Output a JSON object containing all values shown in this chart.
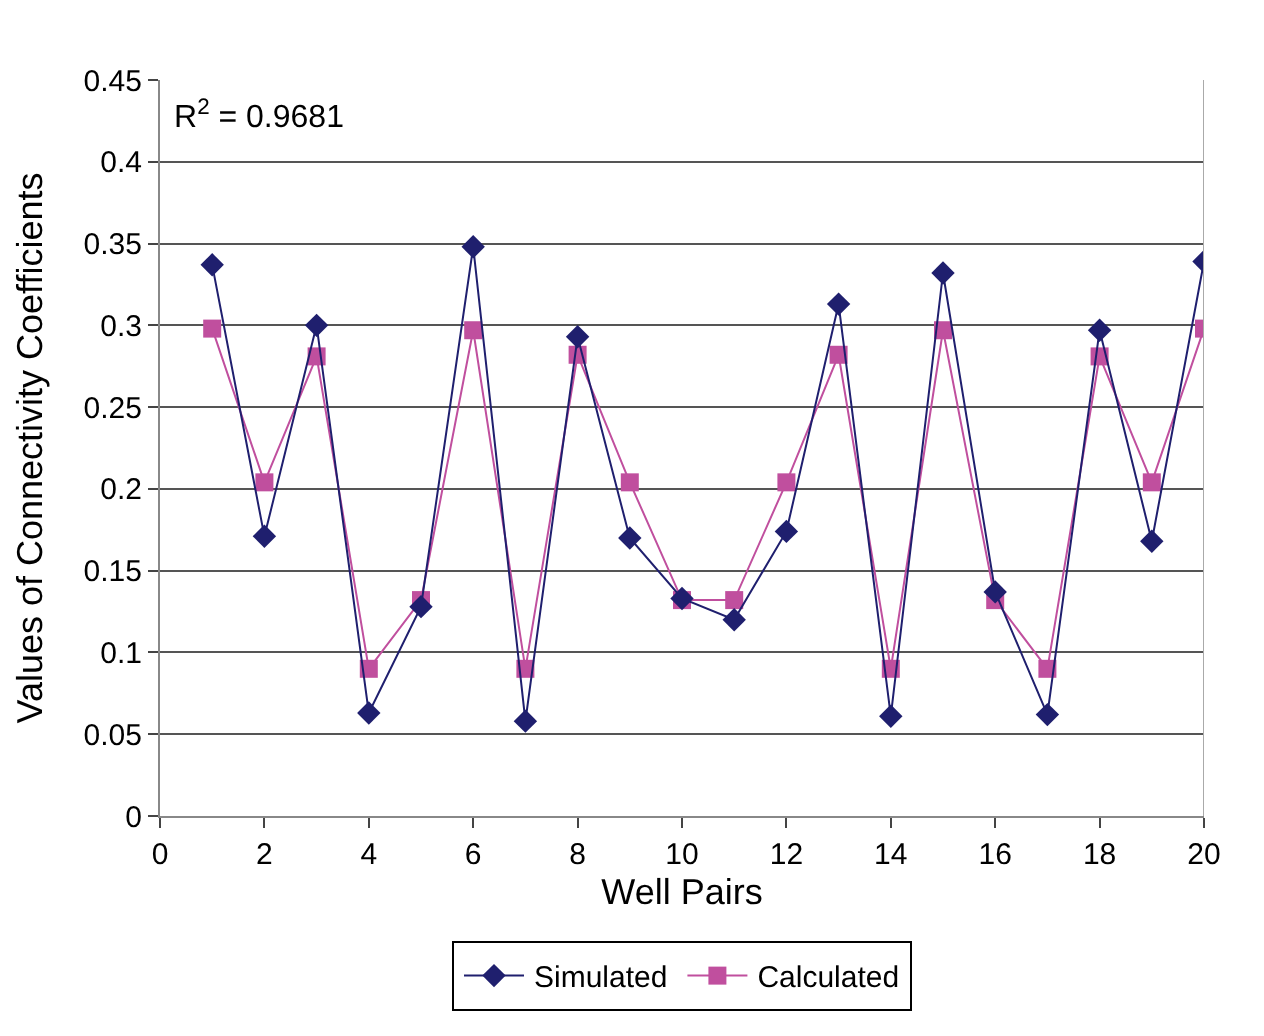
{
  "chart_data": {
    "type": "line",
    "xlabel": "Well Pairs",
    "ylabel": "Values of Connectivity Coefficients",
    "x": [
      1,
      2,
      3,
      4,
      5,
      6,
      7,
      8,
      9,
      10,
      11,
      12,
      13,
      14,
      15,
      16,
      17,
      18,
      19,
      20
    ],
    "series": [
      {
        "name": "Simulated",
        "color": "#1f1f6e",
        "marker": "diamond",
        "values": [
          0.337,
          0.171,
          0.3,
          0.063,
          0.128,
          0.348,
          0.058,
          0.293,
          0.17,
          0.133,
          0.12,
          0.174,
          0.313,
          0.061,
          0.332,
          0.137,
          0.062,
          0.297,
          0.168,
          0.339
        ]
      },
      {
        "name": "Calculated",
        "color": "#c04f9e",
        "marker": "square",
        "values": [
          0.298,
          0.204,
          0.281,
          0.09,
          0.132,
          0.297,
          0.09,
          0.282,
          0.204,
          0.132,
          0.132,
          0.204,
          0.282,
          0.09,
          0.297,
          0.132,
          0.09,
          0.281,
          0.204,
          0.298
        ]
      }
    ],
    "xlim": [
      0,
      20
    ],
    "xticks": [
      0,
      2,
      4,
      6,
      8,
      10,
      12,
      14,
      16,
      18,
      20
    ],
    "ylim": [
      0,
      0.45
    ],
    "yticks": [
      0,
      0.05,
      0.1,
      0.15,
      0.2,
      0.25,
      0.3,
      0.35,
      0.4,
      0.45
    ],
    "grid": "y",
    "legend": "bottom",
    "line_style": "solid",
    "annotations": [
      "R$^{2}$ = 0.9681"
    ]
  }
}
